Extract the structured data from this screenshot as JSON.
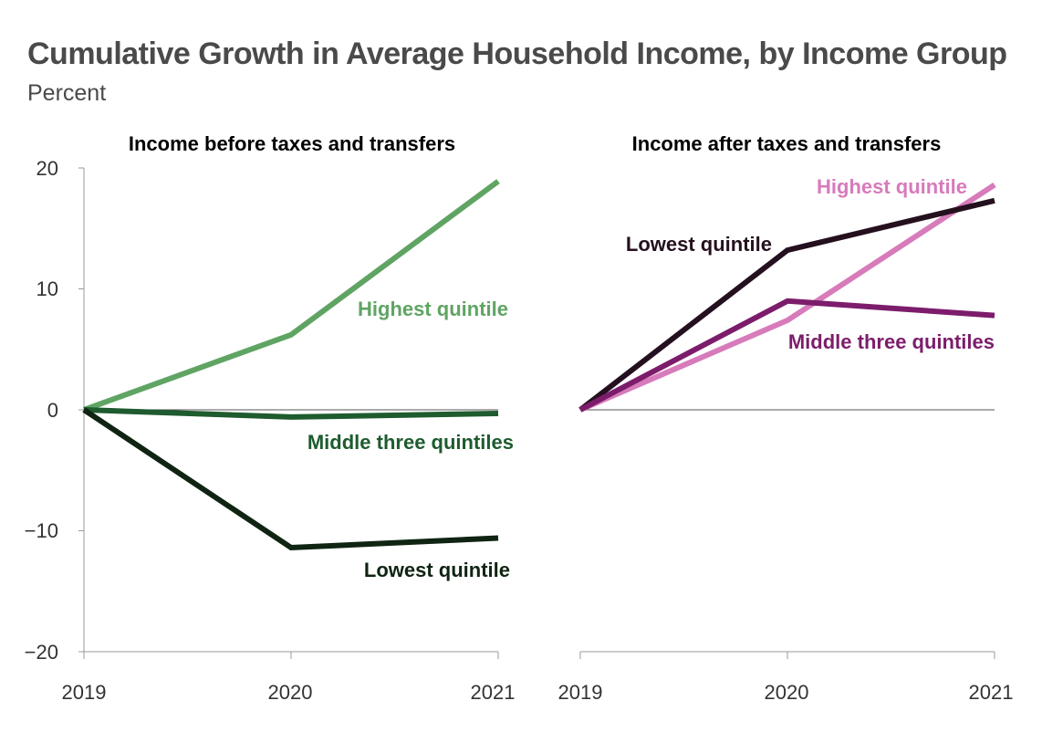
{
  "title": "Cumulative Growth in Average Household Income, by Income Group",
  "subtitle": "Percent",
  "chart_data": [
    {
      "type": "line",
      "title": "Income before taxes and transfers",
      "categories": [
        "2019",
        "2020",
        "2021"
      ],
      "ylim": [
        -20,
        20
      ],
      "yticks": [
        20,
        10,
        0,
        -10,
        -20
      ],
      "ytick_labels": [
        "20",
        "10",
        "0",
        "−10",
        "−20"
      ],
      "series": [
        {
          "name": "Highest quintile",
          "values": [
            0,
            6.2,
            18.9
          ],
          "color": "#5fa463"
        },
        {
          "name": "Middle three quintiles",
          "values": [
            0,
            -0.6,
            -0.3
          ],
          "color": "#1e5b2e"
        },
        {
          "name": "Lowest quintile",
          "values": [
            0,
            -11.4,
            -10.6
          ],
          "color": "#0f2412"
        }
      ]
    },
    {
      "type": "line",
      "title": "Income after taxes and transfers",
      "categories": [
        "2019",
        "2020",
        "2021"
      ],
      "ylim": [
        -20,
        20
      ],
      "series": [
        {
          "name": "Highest quintile",
          "values": [
            0,
            7.4,
            18.6
          ],
          "color": "#d77bbb"
        },
        {
          "name": "Lowest quintile",
          "values": [
            0,
            13.2,
            17.3
          ],
          "color": "#24101e"
        },
        {
          "name": "Middle three quintiles",
          "values": [
            0,
            9.0,
            7.8
          ],
          "color": "#7c1d6b"
        }
      ]
    }
  ]
}
